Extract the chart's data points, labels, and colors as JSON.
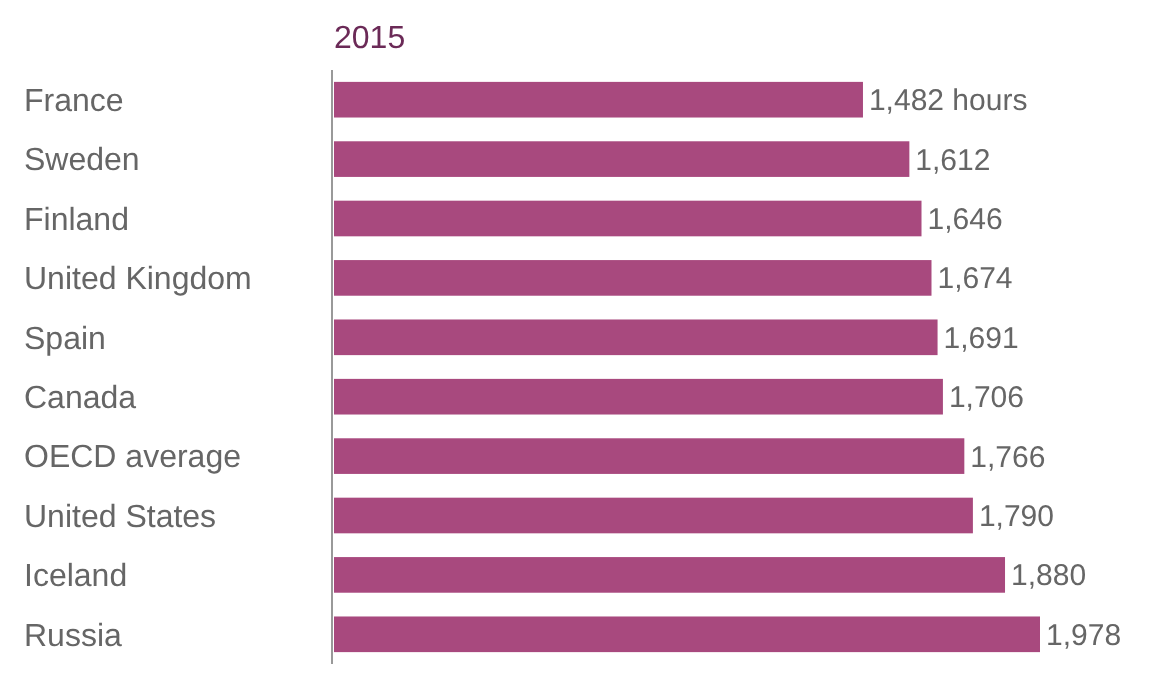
{
  "chart_data": {
    "type": "bar",
    "orientation": "horizontal",
    "title": "2015",
    "categories": [
      "France",
      "Sweden",
      "Finland",
      "United Kingdom",
      "Spain",
      "Canada",
      "OECD average",
      "United States",
      "Iceland",
      "Russia"
    ],
    "values": [
      1482,
      1612,
      1646,
      1674,
      1691,
      1706,
      1766,
      1790,
      1880,
      1978
    ],
    "value_labels": [
      "1,482 hours",
      "1,612",
      "1,646",
      "1,674",
      "1,691",
      "1,706",
      "1,766",
      "1,790",
      "1,880",
      "1,978"
    ],
    "color": "#a8497e"
  }
}
